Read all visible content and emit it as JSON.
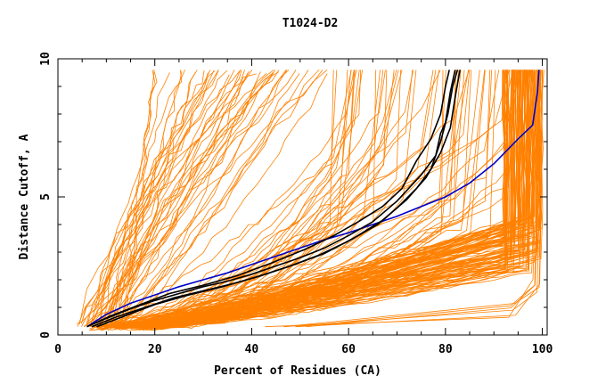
{
  "chart_data": {
    "type": "line",
    "title": "T1024-D2",
    "xlabel": "Percent of Residues (CA)",
    "ylabel": "Distance Cutoff, A",
    "xlim": [
      0,
      101
    ],
    "ylim": [
      0,
      10
    ],
    "x_ticks": [
      0,
      20,
      40,
      60,
      80,
      100
    ],
    "y_ticks": [
      0,
      5,
      10
    ],
    "grid": false,
    "legend": "none",
    "colors": {
      "models": "#ff8000",
      "highlight_black": "#000000",
      "highlight_blue": "#0000cc"
    },
    "series": [
      {
        "color": "#0000cc",
        "points": [
          [
            6,
            0.3
          ],
          [
            10,
            0.75
          ],
          [
            15,
            1.15
          ],
          [
            20,
            1.45
          ],
          [
            25,
            1.75
          ],
          [
            30,
            2.0
          ],
          [
            35,
            2.25
          ],
          [
            40,
            2.55
          ],
          [
            45,
            2.85
          ],
          [
            50,
            3.15
          ],
          [
            55,
            3.45
          ],
          [
            60,
            3.7
          ],
          [
            65,
            4.0
          ],
          [
            70,
            4.3
          ],
          [
            75,
            4.65
          ],
          [
            80,
            5.0
          ],
          [
            85,
            5.5
          ],
          [
            90,
            6.2
          ],
          [
            95,
            7.1
          ],
          [
            98,
            7.6
          ],
          [
            99,
            8.8
          ],
          [
            99.3,
            9.6
          ]
        ]
      },
      {
        "color": "#000000",
        "points": [
          [
            6,
            0.3
          ],
          [
            10,
            0.6
          ],
          [
            15,
            0.95
          ],
          [
            20,
            1.25
          ],
          [
            25,
            1.5
          ],
          [
            30,
            1.75
          ],
          [
            35,
            1.95
          ],
          [
            40,
            2.2
          ],
          [
            45,
            2.5
          ],
          [
            50,
            2.8
          ],
          [
            55,
            3.15
          ],
          [
            60,
            3.6
          ],
          [
            65,
            4.1
          ],
          [
            70,
            4.85
          ],
          [
            75,
            5.8
          ],
          [
            78,
            6.5
          ],
          [
            79,
            7.3
          ],
          [
            80,
            7.7
          ],
          [
            81,
            8.8
          ],
          [
            82,
            9.6
          ]
        ]
      },
      {
        "color": "#000000",
        "points": [
          [
            7,
            0.3
          ],
          [
            12,
            0.65
          ],
          [
            18,
            1.0
          ],
          [
            24,
            1.35
          ],
          [
            30,
            1.6
          ],
          [
            36,
            1.85
          ],
          [
            42,
            2.15
          ],
          [
            48,
            2.5
          ],
          [
            54,
            2.9
          ],
          [
            60,
            3.4
          ],
          [
            66,
            4.0
          ],
          [
            70,
            4.6
          ],
          [
            74,
            5.3
          ],
          [
            77,
            6.0
          ],
          [
            79,
            7.0
          ],
          [
            80.5,
            8.0
          ],
          [
            81.5,
            9.0
          ],
          [
            82.5,
            9.6
          ]
        ]
      },
      {
        "color": "#000000",
        "points": [
          [
            6,
            0.3
          ],
          [
            11,
            0.7
          ],
          [
            17,
            1.1
          ],
          [
            23,
            1.5
          ],
          [
            30,
            1.8
          ],
          [
            37,
            2.15
          ],
          [
            44,
            2.6
          ],
          [
            51,
            3.1
          ],
          [
            57,
            3.6
          ],
          [
            62,
            4.1
          ],
          [
            67,
            4.65
          ],
          [
            71,
            5.3
          ],
          [
            74,
            6.3
          ],
          [
            77,
            7.1
          ],
          [
            79,
            8.0
          ],
          [
            80,
            9.0
          ],
          [
            80.8,
            9.6
          ]
        ]
      },
      {
        "color": "#000000",
        "points": [
          [
            8,
            0.3
          ],
          [
            14,
            0.7
          ],
          [
            20,
            1.1
          ],
          [
            27,
            1.45
          ],
          [
            34,
            1.75
          ],
          [
            41,
            2.1
          ],
          [
            48,
            2.5
          ],
          [
            55,
            2.95
          ],
          [
            61,
            3.5
          ],
          [
            67,
            4.15
          ],
          [
            72,
            4.9
          ],
          [
            76,
            5.7
          ],
          [
            79,
            6.6
          ],
          [
            81,
            7.5
          ],
          [
            82,
            8.6
          ],
          [
            83,
            9.6
          ]
        ]
      }
    ]
  }
}
